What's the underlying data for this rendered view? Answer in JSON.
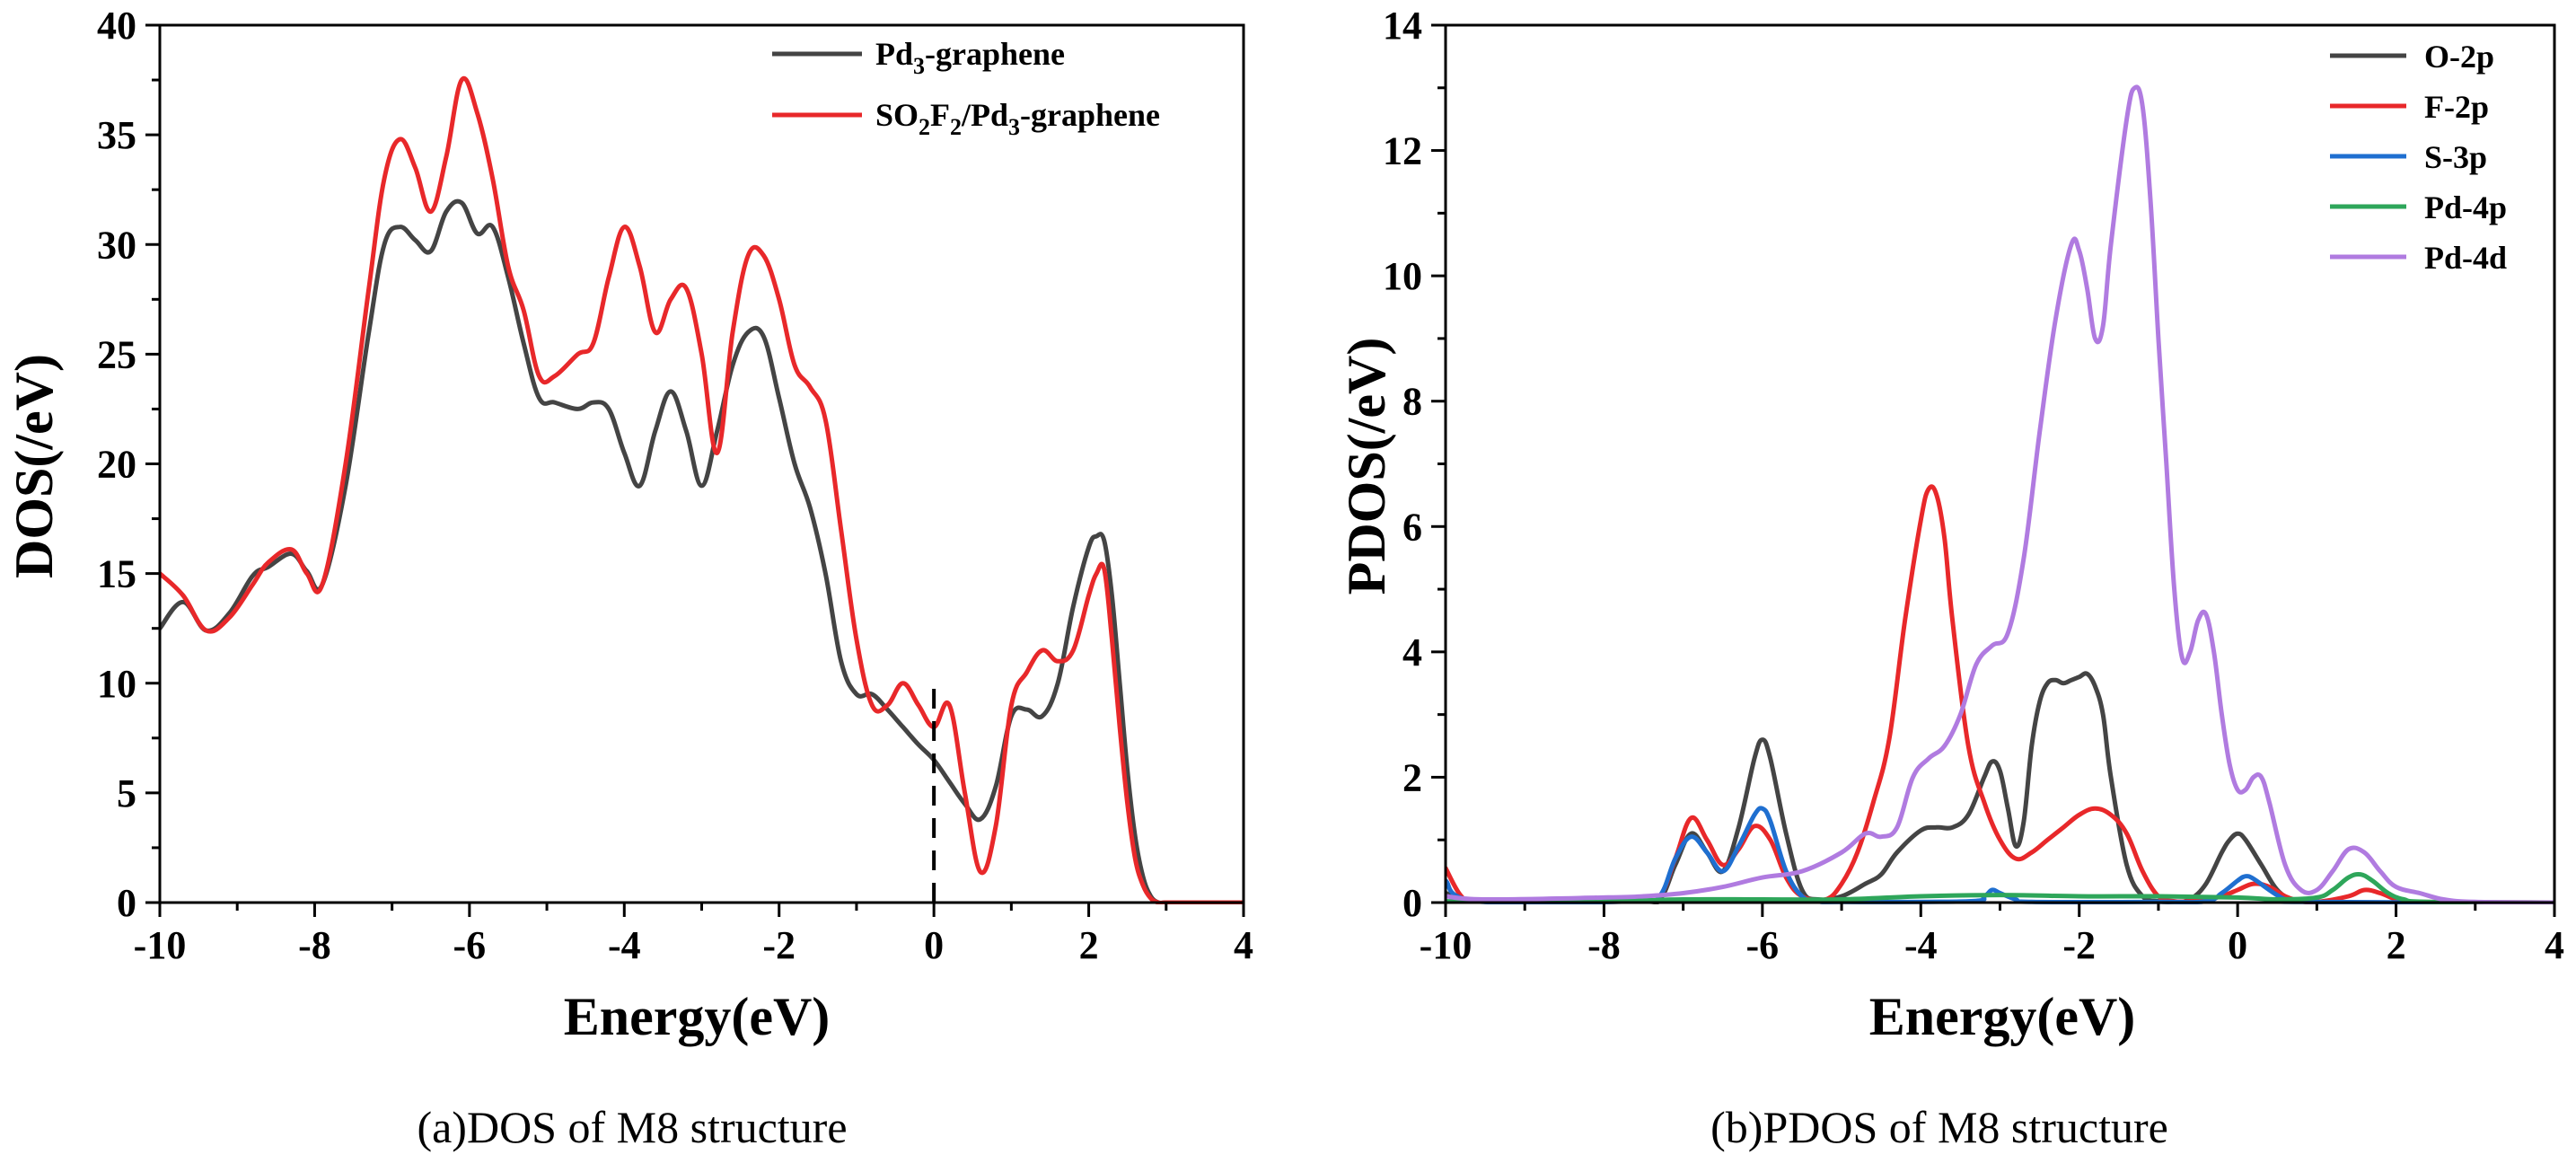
{
  "chart_data": [
    {
      "id": "a",
      "type": "line",
      "caption": "(a)DOS of M8 structure",
      "xlabel": "Energy(eV)",
      "ylabel": "DOS(/eV)",
      "xlim": [
        -10,
        4
      ],
      "ylim": [
        0,
        40
      ],
      "xticks": [
        -10,
        -8,
        -6,
        -4,
        -2,
        0,
        2,
        4
      ],
      "yticks": [
        0,
        5,
        10,
        15,
        20,
        25,
        30,
        35,
        40
      ],
      "fermi_line": {
        "x": 0,
        "y_top": 10,
        "style": "dashed"
      },
      "legend": [
        {
          "base": "Pd",
          "sub": "3",
          "rest": "-graphene",
          "color": "#444444"
        },
        {
          "parts": [
            [
              "SO",
              ""
            ],
            [
              "2",
              "sub"
            ],
            [
              "F",
              ""
            ],
            [
              "2",
              "sub"
            ],
            [
              "/Pd",
              ""
            ],
            [
              "3",
              "sub"
            ],
            [
              "-graphene",
              ""
            ]
          ],
          "color": "#e8282a"
        }
      ],
      "legend_placement": "top-right",
      "series": [
        {
          "name": "Pd3-graphene",
          "color": "#444444",
          "x": [
            -10,
            -9.7,
            -9.4,
            -9.1,
            -8.8,
            -8.6,
            -8.3,
            -8.1,
            -7.9,
            -7.6,
            -7.3,
            -7.1,
            -6.9,
            -6.7,
            -6.5,
            -6.3,
            -6.1,
            -5.9,
            -5.7,
            -5.5,
            -5.3,
            -5.1,
            -4.9,
            -4.6,
            -4.4,
            -4.2,
            -4.0,
            -3.8,
            -3.6,
            -3.4,
            -3.2,
            -3.0,
            -2.8,
            -2.6,
            -2.4,
            -2.2,
            -2.0,
            -1.8,
            -1.6,
            -1.4,
            -1.2,
            -1.0,
            -0.8,
            -0.6,
            -0.4,
            -0.2,
            0.0,
            0.2,
            0.4,
            0.6,
            0.8,
            1.0,
            1.2,
            1.4,
            1.6,
            1.8,
            2.0,
            2.1,
            2.2,
            2.3,
            2.4,
            2.5,
            2.6,
            2.7,
            2.8,
            2.9,
            3.0,
            3.2,
            3.6,
            4.0
          ],
          "values": [
            12.5,
            13.7,
            12.4,
            13.2,
            14.9,
            15.3,
            15.9,
            15.1,
            14.5,
            19,
            26,
            30,
            30.8,
            30.2,
            29.7,
            31.5,
            31.9,
            30.5,
            30.8,
            28.5,
            25.5,
            23,
            22.8,
            22.5,
            22.8,
            22.5,
            20.5,
            19,
            21.5,
            23.3,
            21.5,
            19,
            21.5,
            24.5,
            26,
            25.8,
            23,
            20,
            18,
            15,
            11,
            9.5,
            9.5,
            8.8,
            8,
            7.2,
            6.5,
            5.5,
            4.5,
            3.8,
            5.3,
            8.5,
            8.8,
            8.5,
            10,
            13.5,
            16.2,
            16.7,
            16.5,
            14,
            10,
            6,
            3,
            1.2,
            0.3,
            0,
            0,
            0,
            0,
            0
          ]
        },
        {
          "name": "SO2F2/Pd3-graphene",
          "color": "#e8282a",
          "x": [
            -10,
            -9.7,
            -9.4,
            -9.1,
            -8.8,
            -8.6,
            -8.3,
            -8.1,
            -7.9,
            -7.6,
            -7.3,
            -7.1,
            -6.9,
            -6.7,
            -6.5,
            -6.3,
            -6.1,
            -5.9,
            -5.7,
            -5.5,
            -5.3,
            -5.1,
            -4.9,
            -4.6,
            -4.4,
            -4.2,
            -4.0,
            -3.8,
            -3.6,
            -3.4,
            -3.2,
            -3.0,
            -2.8,
            -2.6,
            -2.4,
            -2.2,
            -2.0,
            -1.8,
            -1.6,
            -1.4,
            -1.2,
            -1.0,
            -0.8,
            -0.6,
            -0.4,
            -0.2,
            0.0,
            0.2,
            0.4,
            0.6,
            0.8,
            1.0,
            1.2,
            1.4,
            1.6,
            1.8,
            2.0,
            2.1,
            2.2,
            2.3,
            2.4,
            2.5,
            2.6,
            2.7,
            2.8,
            2.9,
            3.0,
            3.2,
            3.6,
            4.0
          ],
          "values": [
            15,
            14,
            12.4,
            13,
            14.5,
            15.5,
            16.1,
            15.0,
            14.5,
            20,
            28,
            33,
            34.8,
            33.5,
            31.5,
            34,
            37.5,
            36,
            33,
            29,
            27,
            24,
            24,
            25,
            25.5,
            28.5,
            30.8,
            29,
            26,
            27.5,
            28,
            25,
            20.5,
            26,
            29.5,
            29.5,
            27.5,
            24.5,
            23.5,
            22,
            17,
            12,
            9,
            9,
            10,
            9,
            8,
            9,
            5,
            1.4,
            3.5,
            9,
            10.5,
            11.5,
            11,
            11.5,
            14,
            15,
            15.2,
            12,
            8,
            4.5,
            2,
            0.8,
            0.2,
            0,
            0,
            0,
            0,
            0
          ]
        }
      ]
    },
    {
      "id": "b",
      "type": "line",
      "caption": "(b)PDOS of M8 structure",
      "xlabel": "Energy(eV)",
      "ylabel": "PDOS(/eV)",
      "xlim": [
        -10,
        4
      ],
      "ylim": [
        0,
        14
      ],
      "xticks": [
        -10,
        -8,
        -6,
        -4,
        -2,
        0,
        2,
        4
      ],
      "yticks": [
        0,
        2,
        4,
        6,
        8,
        10,
        12,
        14
      ],
      "legend_placement": "top-right",
      "series": [
        {
          "name": "O-2p",
          "color": "#444444",
          "x": [
            -10,
            -9.5,
            -7.6,
            -7.3,
            -7.1,
            -6.9,
            -6.7,
            -6.5,
            -6.3,
            -6.1,
            -6.0,
            -5.9,
            -5.7,
            -5.5,
            -5.3,
            -5.0,
            -4.7,
            -4.5,
            -4.3,
            -4.0,
            -3.8,
            -3.6,
            -3.4,
            -3.2,
            -3.1,
            -3.0,
            -2.9,
            -2.8,
            -2.7,
            -2.6,
            -2.5,
            -2.4,
            -2.3,
            -2.2,
            -2.1,
            -2.0,
            -1.9,
            -1.8,
            -1.7,
            -1.6,
            -1.4,
            -1.2,
            -1.0,
            -0.8,
            -0.6,
            -0.4,
            -0.2,
            -0.1,
            0.0,
            0.1,
            0.3,
            0.5,
            0.7,
            1.0,
            2.0,
            4.0
          ],
          "values": [
            0.15,
            0.02,
            0.02,
            0.05,
            0.6,
            1.1,
            0.8,
            0.5,
            1.2,
            2.3,
            2.6,
            2.3,
            1.1,
            0.2,
            0.05,
            0.1,
            0.3,
            0.45,
            0.8,
            1.15,
            1.2,
            1.2,
            1.4,
            2.0,
            2.25,
            2.1,
            1.5,
            0.9,
            1.3,
            2.5,
            3.2,
            3.5,
            3.55,
            3.5,
            3.55,
            3.6,
            3.65,
            3.45,
            3.0,
            2.0,
            0.6,
            0.1,
            0.02,
            0.01,
            0.05,
            0.3,
            0.8,
            1.0,
            1.1,
            1.0,
            0.6,
            0.2,
            0.05,
            0.01,
            0,
            0
          ]
        },
        {
          "name": "F-2p",
          "color": "#e8282a",
          "x": [
            -10,
            -9.8,
            -9.6,
            -7.6,
            -7.3,
            -7.1,
            -6.9,
            -6.7,
            -6.5,
            -6.3,
            -6.1,
            -5.9,
            -5.7,
            -5.5,
            -5.2,
            -5.0,
            -4.8,
            -4.6,
            -4.4,
            -4.2,
            -4.0,
            -3.9,
            -3.8,
            -3.7,
            -3.6,
            -3.4,
            -3.2,
            -3.0,
            -2.8,
            -2.6,
            -2.4,
            -2.2,
            -2.0,
            -1.8,
            -1.6,
            -1.4,
            -1.2,
            -1.0,
            -0.8,
            -0.6,
            -0.4,
            -0.2,
            0.0,
            0.2,
            0.4,
            0.6,
            0.8,
            1.0,
            1.4,
            1.6,
            1.8,
            2.0,
            2.2,
            4.0
          ],
          "values": [
            0.55,
            0.1,
            0.02,
            0.02,
            0.1,
            0.7,
            1.35,
            1.0,
            0.6,
            0.85,
            1.22,
            1.0,
            0.4,
            0.1,
            0.05,
            0.3,
            0.8,
            1.6,
            2.6,
            4.5,
            6.1,
            6.6,
            6.5,
            5.8,
            4.5,
            2.5,
            1.6,
            1.0,
            0.7,
            0.8,
            1.0,
            1.2,
            1.4,
            1.5,
            1.4,
            1.1,
            0.5,
            0.1,
            0.02,
            0.02,
            0.05,
            0.1,
            0.2,
            0.3,
            0.25,
            0.1,
            0.02,
            0.01,
            0.1,
            0.2,
            0.15,
            0.05,
            0.01,
            0
          ]
        },
        {
          "name": "S-3p",
          "color": "#1f6fd0",
          "x": [
            -10,
            -9.6,
            -7.6,
            -7.3,
            -7.1,
            -6.9,
            -6.7,
            -6.5,
            -6.3,
            -6.1,
            -6.0,
            -5.9,
            -5.7,
            -5.5,
            -5.3,
            -5.0,
            -3.4,
            -3.2,
            -3.1,
            -3.0,
            -2.8,
            -2.6,
            -1.0,
            -0.4,
            -0.2,
            0.0,
            0.1,
            0.2,
            0.4,
            0.6,
            0.8,
            4.0
          ],
          "values": [
            0.35,
            0.02,
            0.02,
            0.1,
            0.7,
            1.05,
            0.8,
            0.5,
            0.9,
            1.4,
            1.5,
            1.3,
            0.5,
            0.1,
            0.02,
            0.01,
            0.02,
            0.1,
            0.2,
            0.15,
            0.05,
            0.01,
            0.01,
            0.02,
            0.15,
            0.35,
            0.42,
            0.38,
            0.2,
            0.05,
            0.01,
            0
          ]
        },
        {
          "name": "Pd-4p",
          "color": "#2ea65a",
          "x": [
            -10,
            -8,
            -7,
            -6,
            -5,
            -4,
            -3,
            -2,
            -1,
            0,
            0.5,
            1.0,
            1.2,
            1.4,
            1.55,
            1.7,
            1.9,
            2.1,
            2.4,
            4.0
          ],
          "values": [
            0.02,
            0.02,
            0.05,
            0.05,
            0.05,
            0.1,
            0.12,
            0.1,
            0.1,
            0.08,
            0.05,
            0.08,
            0.2,
            0.4,
            0.45,
            0.35,
            0.15,
            0.05,
            0.01,
            0
          ]
        },
        {
          "name": "Pd-4d",
          "color": "#b07be0",
          "x": [
            -10,
            -9.5,
            -8,
            -7.5,
            -7.0,
            -6.5,
            -6.0,
            -5.5,
            -5.0,
            -4.7,
            -4.5,
            -4.3,
            -4.1,
            -3.9,
            -3.7,
            -3.5,
            -3.3,
            -3.1,
            -2.9,
            -2.7,
            -2.5,
            -2.3,
            -2.1,
            -2.0,
            -1.9,
            -1.8,
            -1.7,
            -1.6,
            -1.4,
            -1.3,
            -1.2,
            -1.1,
            -1.0,
            -0.9,
            -0.8,
            -0.7,
            -0.6,
            -0.5,
            -0.4,
            -0.3,
            -0.2,
            -0.1,
            0.0,
            0.1,
            0.2,
            0.3,
            0.4,
            0.6,
            0.8,
            1.0,
            1.2,
            1.4,
            1.6,
            1.8,
            2.0,
            2.3,
            2.6,
            3.0,
            4.0
          ],
          "values": [
            0.1,
            0.05,
            0.08,
            0.1,
            0.15,
            0.25,
            0.4,
            0.5,
            0.8,
            1.1,
            1.05,
            1.2,
            2.0,
            2.3,
            2.5,
            3.0,
            3.8,
            4.1,
            4.3,
            5.5,
            7.5,
            9.3,
            10.5,
            10.4,
            9.8,
            9.0,
            9.2,
            10.5,
            12.5,
            13.0,
            12.7,
            11.2,
            9.0,
            7.0,
            5.0,
            3.9,
            4.0,
            4.5,
            4.6,
            4.0,
            3.0,
            2.2,
            1.8,
            1.8,
            2.0,
            2.0,
            1.6,
            0.6,
            0.2,
            0.2,
            0.5,
            0.85,
            0.8,
            0.5,
            0.25,
            0.15,
            0.05,
            0.01,
            0
          ]
        }
      ]
    }
  ]
}
